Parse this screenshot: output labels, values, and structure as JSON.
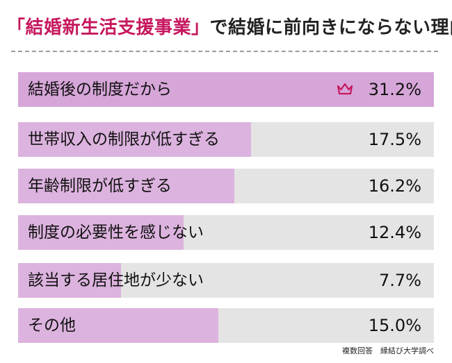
{
  "header": {
    "title_highlight": "「結婚新生活支援事業」",
    "title_rest": "で結婚に前向きにならない理由"
  },
  "chart_data": {
    "type": "bar",
    "orientation": "horizontal",
    "title": "「結婚新生活支援事業」で結婚に前向きにならない理由",
    "categories": [
      "結婚後の制度だから",
      "世帯収入の制限が低すぎる",
      "年齢制限が低すぎる",
      "制度の必要性を感じない",
      "該当する居住地が少ない",
      "その他"
    ],
    "values": [
      31.2,
      17.5,
      16.2,
      12.4,
      7.7,
      15.0
    ],
    "value_labels": [
      "31.2%",
      "17.5%",
      "16.2%",
      "12.4%",
      "7.7%",
      "15.0%"
    ],
    "unit": "%",
    "xlim": [
      0,
      31.2
    ],
    "top_marker": "crown-icon"
  },
  "colors": {
    "accent": "#c6175e",
    "bar_fill": "#dcb3de",
    "bar_fill_top": "#d7a6d9",
    "track": "#e4e4e4"
  },
  "footer": {
    "source": "複数回答　縁結び大学調べ"
  }
}
